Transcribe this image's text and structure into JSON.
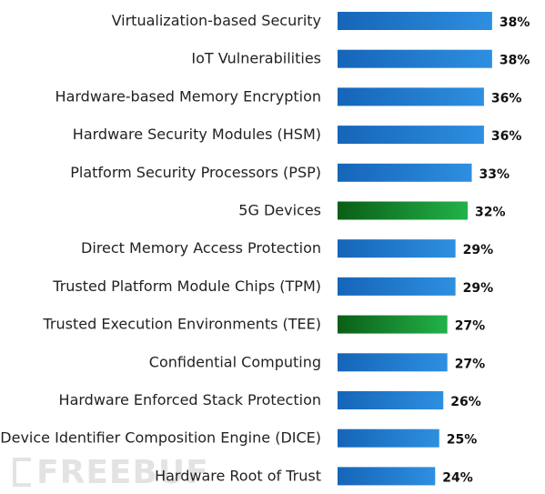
{
  "chart_data": {
    "type": "bar",
    "orientation": "horizontal",
    "title": "",
    "xlabel": "",
    "ylabel": "",
    "xlim": [
      0,
      40
    ],
    "grid": false,
    "legend": "none",
    "categories": [
      "Virtualization-based Security",
      "IoT Vulnerabilities",
      "Hardware-based Memory Encryption",
      "Hardware Security Modules (HSM)",
      "Platform Security Processors (PSP)",
      "5G Devices",
      "Direct Memory Access Protection",
      "Trusted Platform Module Chips (TPM)",
      "Trusted Execution Environments (TEE)",
      "Confidential Computing",
      "Hardware Enforced Stack Protection",
      "Device Identifier Composition Engine (DICE)",
      "Hardware Root of Trust"
    ],
    "values": [
      38,
      38,
      36,
      36,
      33,
      32,
      29,
      29,
      27,
      27,
      26,
      25,
      24
    ],
    "value_labels": [
      "38%",
      "38%",
      "36%",
      "36%",
      "33%",
      "32%",
      "29%",
      "29%",
      "27%",
      "27%",
      "26%",
      "25%",
      "24%"
    ],
    "bar_colors": [
      "blue",
      "blue",
      "blue",
      "blue",
      "blue",
      "green",
      "blue",
      "blue",
      "green",
      "blue",
      "blue",
      "blue",
      "blue"
    ],
    "colors": {
      "blue_dark": "#1565b8",
      "blue_light": "#2e8fe0",
      "green_dark": "#0b5e16",
      "green_light": "#22b24a"
    }
  },
  "watermark": "FREEBUF"
}
